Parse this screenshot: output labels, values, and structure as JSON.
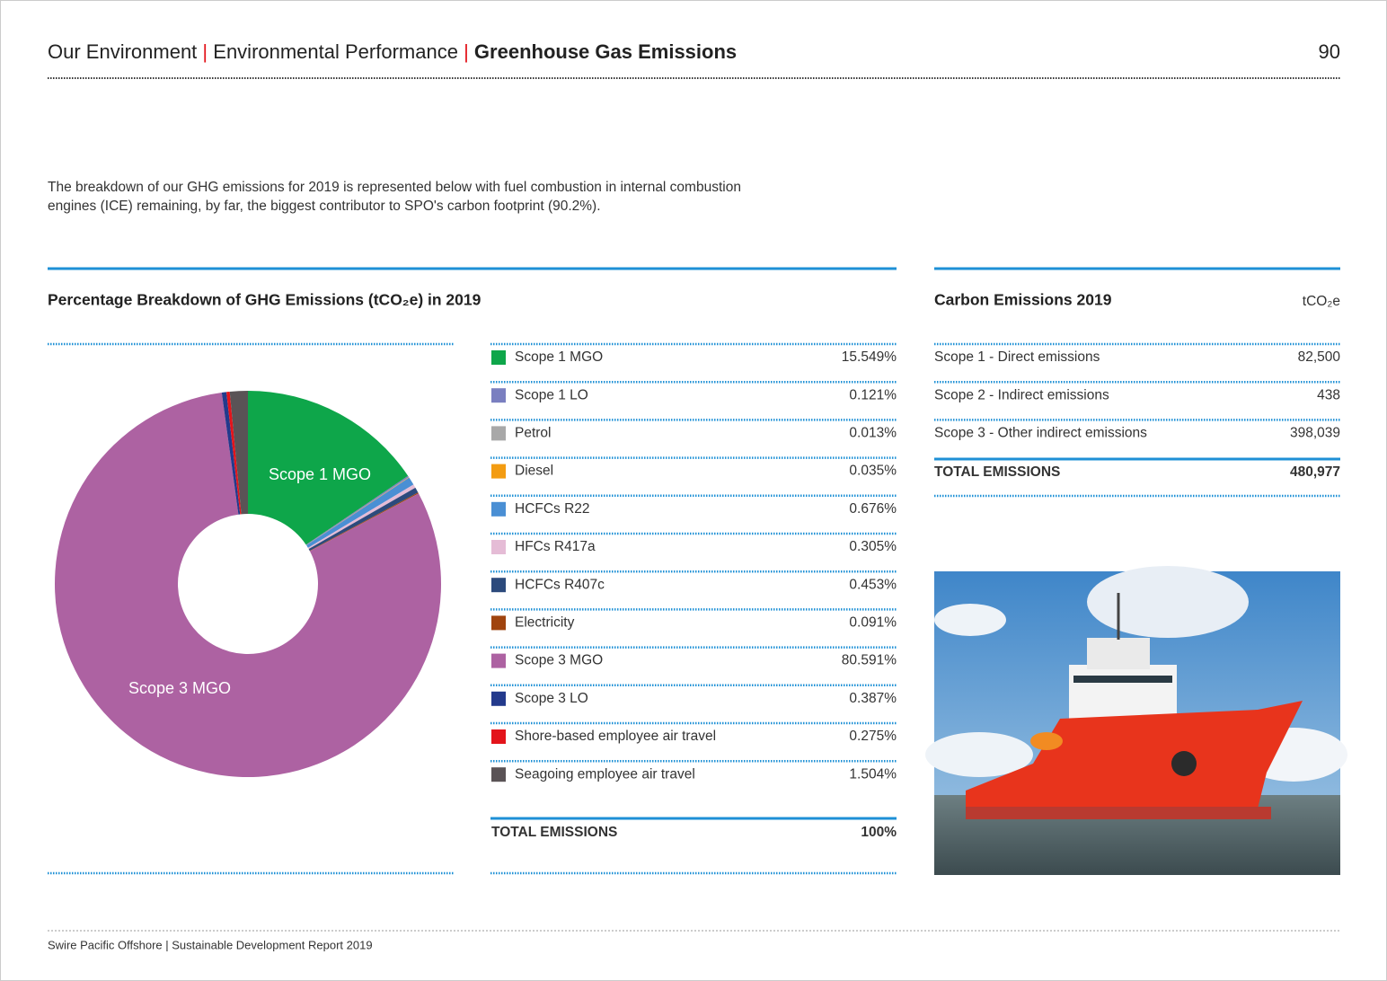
{
  "header": {
    "section": "Our Environment",
    "subsection": "Environmental Performance",
    "title": "Greenhouse Gas Emissions",
    "separator": "|",
    "page": "90"
  },
  "intro": [
    "The breakdown of our GHG emissions for 2019 is represented below with fuel combustion in internal combustion",
    "engines (ICE) remaining, by far, the biggest contributor to SPO's carbon footprint (90.2%)."
  ],
  "chart_data": {
    "type": "pie",
    "title": "Percentage Breakdown of GHG Emissions (tCO₂e) in 2019",
    "categories": [
      "Scope 1 MGO",
      "Scope 1 LO",
      "Petrol",
      "Diesel",
      "HCFCs R22",
      "HFCs R417a",
      "HCFCs R407c",
      "Electricity",
      "Scope 3 MGO",
      "Scope 3 LO",
      "Shore-based employee air travel",
      "Seagoing employee air travel"
    ],
    "values": [
      15.549,
      0.121,
      0.013,
      0.035,
      0.676,
      0.305,
      0.453,
      0.091,
      80.591,
      0.387,
      0.275,
      1.504
    ],
    "value_labels": [
      "15.549%",
      "0.121%",
      "0.013%",
      "0.035%",
      "0.676%",
      "0.305%",
      "0.453%",
      "0.091%",
      "80.591%",
      "0.387%",
      "0.275%",
      "1.504%"
    ],
    "colors": [
      "#0ea64a",
      "#7a7fc0",
      "#a8a8a8",
      "#f39c12",
      "#4a8fd4",
      "#e5bcd6",
      "#2c4a7c",
      "#a0440e",
      "#ad62a2",
      "#233a8c",
      "#e3141b",
      "#5a5356"
    ],
    "total_label": "TOTAL EMISSIONS",
    "total": {
      "value": 100,
      "label": "100%"
    }
  },
  "carbon_table": {
    "title": "Carbon Emissions 2019",
    "unit": "tCO₂e",
    "rows": [
      [
        "Scope 1 - Direct emissions",
        "82,500"
      ],
      [
        "Scope 2 - Indirect emissions",
        "438"
      ],
      [
        "Scope 3 - Other indirect emissions",
        "398,039"
      ]
    ],
    "total": [
      "TOTAL EMISSIONS",
      "480,977"
    ]
  },
  "footer": "Swire Pacific Offshore | Sustainable Development Report 2019"
}
